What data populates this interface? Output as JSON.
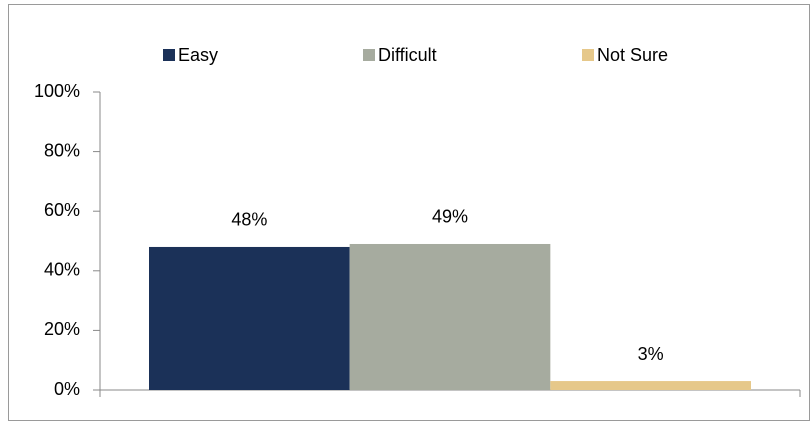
{
  "chart_data": {
    "type": "bar",
    "categories": [
      null
    ],
    "series": [
      {
        "name": "Easy",
        "color": "#1b3158",
        "values": [
          48
        ],
        "value_labels": [
          "48%"
        ]
      },
      {
        "name": "Difficult",
        "color": "#a6ab9f",
        "values": [
          49
        ],
        "value_labels": [
          "49%"
        ]
      },
      {
        "name": "Not Sure",
        "color": "#e6c88a",
        "values": [
          3
        ],
        "value_labels": [
          "3%"
        ]
      }
    ],
    "ylim": [
      0,
      100
    ],
    "yticks": [
      {
        "value": 0,
        "label": "0%"
      },
      {
        "value": 20,
        "label": "20%"
      },
      {
        "value": 40,
        "label": "40%"
      },
      {
        "value": 60,
        "label": "60%"
      },
      {
        "value": 80,
        "label": "80%"
      },
      {
        "value": 100,
        "label": "100%"
      }
    ],
    "legend": "top"
  }
}
